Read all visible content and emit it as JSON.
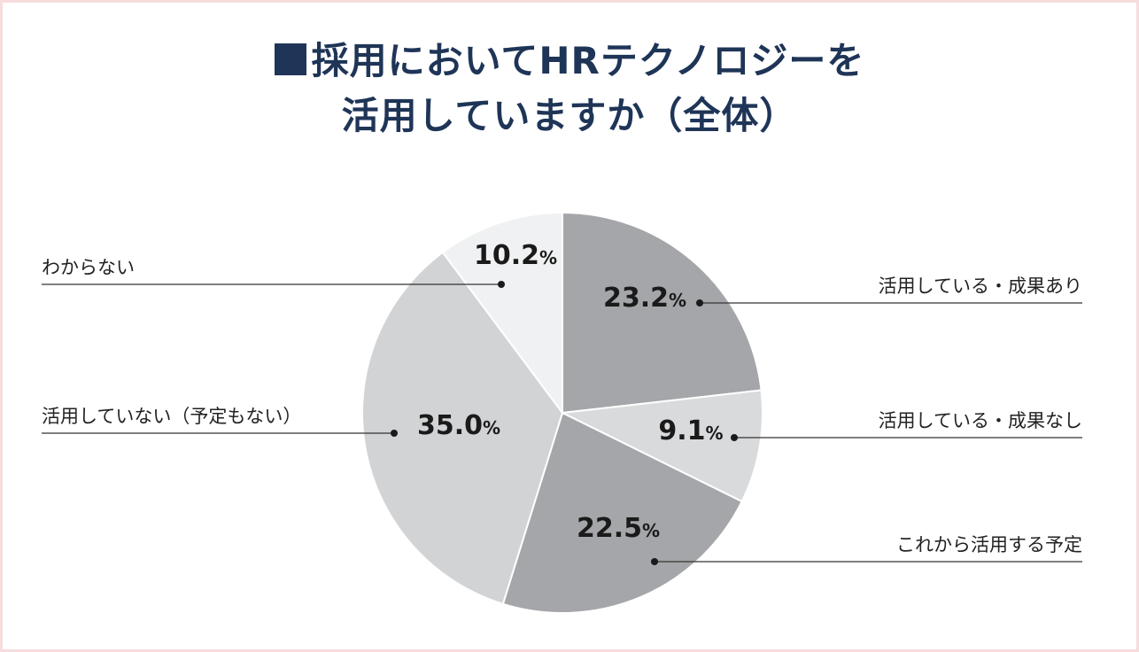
{
  "title": {
    "line1": "採用においてHRテクノロジーを",
    "line2": "活用していますか（全体）"
  },
  "chart_data": {
    "type": "pie",
    "title": "■採用においてHRテクノロジーを活用していますか（全体）",
    "start": "12 o'clock",
    "direction": "clockwise",
    "slices": [
      {
        "label": "活用している・成果あり",
        "value": 23.2,
        "display": "23.2",
        "color": "#a5a6a9"
      },
      {
        "label": "活用している・成果なし",
        "value": 9.1,
        "display": "9.1",
        "color": "#d9dadc"
      },
      {
        "label": "これから活用する予定",
        "value": 22.5,
        "display": "22.5",
        "color": "#a5a6a9"
      },
      {
        "label": "活用していない（予定もない）",
        "value": 35.0,
        "display": "35.0",
        "color": "#d2d3d5"
      },
      {
        "label": "わからない",
        "value": 10.2,
        "display": "10.2",
        "color": "#f0f1f2"
      }
    ],
    "unit": "%",
    "label_placement": {
      "活用している・成果あり": "right",
      "活用している・成果なし": "right",
      "これから活用する予定": "right",
      "活用していない（予定もない）": "left",
      "わからない": "left"
    }
  },
  "colors": {
    "title": "#1f3557",
    "frame_border": "#f6dcdc",
    "slice_border": "#ffffff",
    "leader": "#333333"
  }
}
